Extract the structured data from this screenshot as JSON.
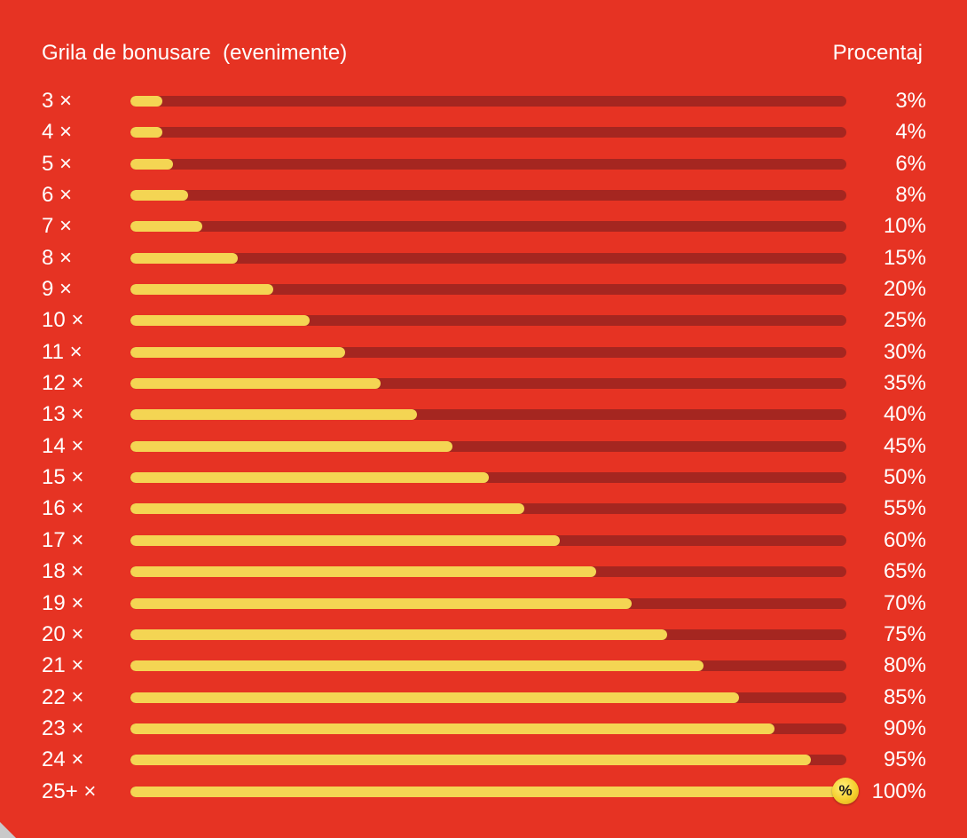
{
  "header": {
    "title": "Grila de bonusare  (evenimente)",
    "percent_title": "Procentaj"
  },
  "colors": {
    "background": "#e63323",
    "track": "#a52620",
    "fill": "#f4d553",
    "text": "#ffffff"
  },
  "badge": {
    "icon": "percent-icon",
    "symbol": "%"
  },
  "rows": [
    {
      "label": "3 ×",
      "percent_text": "3%",
      "value": 3
    },
    {
      "label": "4 ×",
      "percent_text": "4%",
      "value": 4
    },
    {
      "label": "5 ×",
      "percent_text": "6%",
      "value": 6
    },
    {
      "label": "6 ×",
      "percent_text": "8%",
      "value": 8
    },
    {
      "label": "7 ×",
      "percent_text": "10%",
      "value": 10
    },
    {
      "label": "8 ×",
      "percent_text": "15%",
      "value": 15
    },
    {
      "label": "9 ×",
      "percent_text": "20%",
      "value": 20
    },
    {
      "label": "10 ×",
      "percent_text": "25%",
      "value": 25
    },
    {
      "label": "11 ×",
      "percent_text": "30%",
      "value": 30
    },
    {
      "label": "12 ×",
      "percent_text": "35%",
      "value": 35
    },
    {
      "label": "13 ×",
      "percent_text": "40%",
      "value": 40
    },
    {
      "label": "14 ×",
      "percent_text": "45%",
      "value": 45
    },
    {
      "label": "15 ×",
      "percent_text": "50%",
      "value": 50
    },
    {
      "label": "16 ×",
      "percent_text": "55%",
      "value": 55
    },
    {
      "label": "17 ×",
      "percent_text": "60%",
      "value": 60
    },
    {
      "label": "18 ×",
      "percent_text": "65%",
      "value": 65
    },
    {
      "label": "19 ×",
      "percent_text": "70%",
      "value": 70
    },
    {
      "label": "20 ×",
      "percent_text": "75%",
      "value": 75
    },
    {
      "label": "21 ×",
      "percent_text": "80%",
      "value": 80
    },
    {
      "label": "22 ×",
      "percent_text": "85%",
      "value": 85
    },
    {
      "label": "23 ×",
      "percent_text": "90%",
      "value": 90
    },
    {
      "label": "24 ×",
      "percent_text": "95%",
      "value": 95
    },
    {
      "label": "25+ ×",
      "percent_text": "100%",
      "value": 100
    }
  ]
}
